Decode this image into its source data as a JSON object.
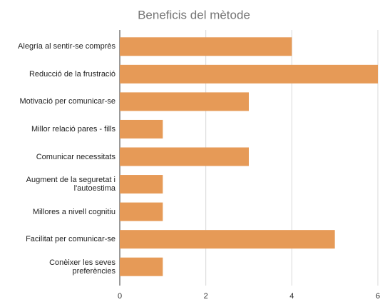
{
  "chart_data": {
    "type": "bar",
    "orientation": "horizontal",
    "title": "Beneficis del mètode",
    "categories": [
      "Alegría al sentir-se comprès",
      "Reducció de la frustració",
      "Motivació per comunicar-se",
      "Millor relació pares - fills",
      "Comunicar necessitats",
      "Augment de la seguretat i l'autoestima",
      "Millores a nivell cognitiu",
      "Facilitat per comunicar-se",
      "Conèixer les seves preferències"
    ],
    "values": [
      4,
      6,
      3,
      1,
      3,
      1,
      1,
      5,
      1
    ],
    "color": "#e69a57",
    "xlim": [
      0,
      6
    ],
    "xticks": [
      0,
      2,
      4,
      6
    ],
    "grid": true
  }
}
